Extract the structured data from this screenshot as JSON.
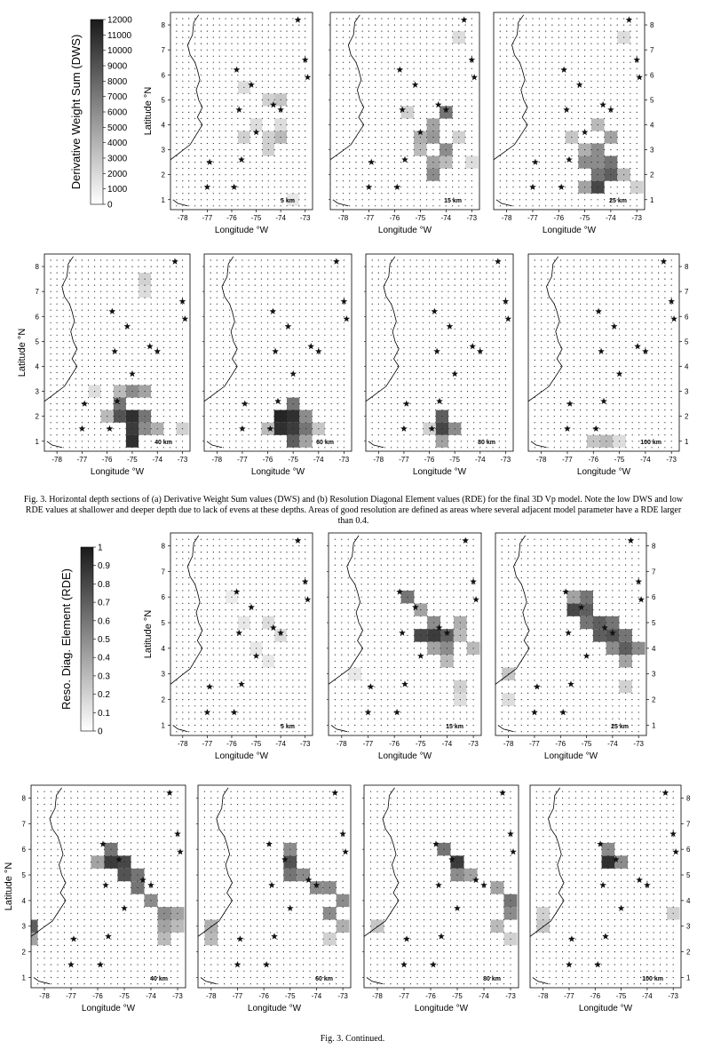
{
  "figure": {
    "caption_main": "Fig. 3. Horizontal depth sections of (a) Derivative Weight Sum values (DWS) and (b) Resolution Diagonal Element values (RDE) for the final 3D Vp model. Note the low DWS and low RDE values at shallower and deeper depth due to lack of evens at these depths. Areas of good resolution are defined as areas where several adjacent model parameter have a RDE larger than 0.4.",
    "caption_continued": "Fig. 3. Continued."
  },
  "axes": {
    "xlabel": "Longitude °W",
    "ylabel": "Latitude °N",
    "x_ticks": [
      "-78",
      "-77",
      "-76",
      "-75",
      "-74",
      "-73"
    ],
    "y_ticks": [
      "1",
      "2",
      "3",
      "4",
      "5",
      "6",
      "7",
      "8"
    ]
  },
  "dws_colorbar": {
    "label": "Derivative Weight Sum (DWS)",
    "ticks": [
      "0",
      "1000",
      "2000",
      "3000",
      "4000",
      "5000",
      "6000",
      "7000",
      "8000",
      "9000",
      "10000",
      "11000",
      "12000"
    ]
  },
  "rde_colorbar": {
    "label": "Reso. Diag. Element (RDE)",
    "ticks": [
      "0",
      "0.1",
      "0.2",
      "0.3",
      "0.4",
      "0.5",
      "0.6",
      "0.7",
      "0.8",
      "0.9",
      "1"
    ]
  },
  "chart_data": {
    "type": "heatmap",
    "title": "Horizontal depth sections of DWS and RDE for the final 3D Vp model",
    "xlabel": "Longitude °W",
    "ylabel": "Latitude °N",
    "xlim": [
      -78.5,
      -72.7
    ],
    "ylim": [
      0.6,
      8.5
    ],
    "stations": [
      [
        -73.3,
        8.2
      ],
      [
        -73.0,
        6.6
      ],
      [
        -72.9,
        5.9
      ],
      [
        -75.8,
        6.2
      ],
      [
        -75.2,
        5.6
      ],
      [
        -74.3,
        4.8
      ],
      [
        -75.7,
        4.6
      ],
      [
        -74.0,
        4.6
      ],
      [
        -75.0,
        3.7
      ],
      [
        -75.6,
        2.6
      ],
      [
        -76.9,
        2.5
      ],
      [
        -77.0,
        1.5
      ],
      [
        -75.9,
        1.5
      ]
    ],
    "dws_sections": [
      {
        "depth_label": "5 km",
        "cells": [
          [
            -75.5,
            5.5,
            0.15
          ],
          [
            -74.5,
            5.0,
            0.2
          ],
          [
            -74.0,
            5.0,
            0.25
          ],
          [
            -75.0,
            4.0,
            0.15
          ],
          [
            -74.5,
            3.5,
            0.2
          ],
          [
            -74.0,
            3.5,
            0.3
          ],
          [
            -75.5,
            3.5,
            0.2
          ],
          [
            -74.5,
            3.0,
            0.2
          ],
          [
            -74.0,
            4.0,
            0.15
          ],
          [
            -73.5,
            1.0,
            0.1
          ]
        ]
      },
      {
        "depth_label": "15 km",
        "cells": [
          [
            -73.5,
            7.5,
            0.15
          ],
          [
            -74.0,
            4.5,
            0.6
          ],
          [
            -74.5,
            4.0,
            0.4
          ],
          [
            -75.0,
            3.5,
            0.35
          ],
          [
            -74.5,
            3.5,
            0.45
          ],
          [
            -74.0,
            3.0,
            0.5
          ],
          [
            -75.0,
            3.0,
            0.3
          ],
          [
            -74.5,
            2.5,
            0.4
          ],
          [
            -74.5,
            2.0,
            0.5
          ],
          [
            -74.0,
            2.5,
            0.3
          ],
          [
            -75.5,
            4.5,
            0.2
          ],
          [
            -73.5,
            3.5,
            0.2
          ],
          [
            -73.0,
            2.5,
            0.15
          ]
        ]
      },
      {
        "depth_label": "25 km",
        "cells": [
          [
            -73.5,
            7.5,
            0.15
          ],
          [
            -74.5,
            4.0,
            0.3
          ],
          [
            -74.0,
            3.5,
            0.4
          ],
          [
            -75.0,
            3.0,
            0.35
          ],
          [
            -74.5,
            3.0,
            0.5
          ],
          [
            -74.0,
            2.5,
            0.6
          ],
          [
            -74.5,
            2.5,
            0.5
          ],
          [
            -75.0,
            2.5,
            0.5
          ],
          [
            -74.5,
            2.0,
            0.6
          ],
          [
            -74.0,
            2.0,
            0.7
          ],
          [
            -74.5,
            1.5,
            0.8
          ],
          [
            -75.0,
            1.5,
            0.4
          ],
          [
            -73.5,
            2.0,
            0.3
          ],
          [
            -73.0,
            1.5,
            0.2
          ],
          [
            -75.5,
            3.5,
            0.25
          ]
        ]
      },
      {
        "depth_label": "40 km",
        "cells": [
          [
            -74.5,
            7.5,
            0.2
          ],
          [
            -74.5,
            7.0,
            0.15
          ],
          [
            -75.5,
            3.0,
            0.3
          ],
          [
            -75.0,
            3.0,
            0.5
          ],
          [
            -74.5,
            3.0,
            0.4
          ],
          [
            -75.5,
            2.5,
            0.6
          ],
          [
            -75.0,
            2.0,
            0.9
          ],
          [
            -75.5,
            2.0,
            0.75
          ],
          [
            -74.5,
            2.0,
            0.6
          ],
          [
            -75.0,
            1.5,
            0.85
          ],
          [
            -74.5,
            1.5,
            0.5
          ],
          [
            -75.0,
            1.0,
            0.9
          ],
          [
            -74.0,
            1.5,
            0.35
          ],
          [
            -76.0,
            2.0,
            0.3
          ],
          [
            -73.0,
            1.5,
            0.2
          ],
          [
            -76.5,
            3.0,
            0.15
          ]
        ]
      },
      {
        "depth_label": "60 km",
        "cells": [
          [
            -75.0,
            2.5,
            0.6
          ],
          [
            -75.5,
            2.0,
            0.95
          ],
          [
            -75.0,
            2.0,
            0.9
          ],
          [
            -75.5,
            1.5,
            0.9
          ],
          [
            -75.0,
            1.5,
            0.85
          ],
          [
            -74.5,
            1.5,
            0.6
          ],
          [
            -74.5,
            2.0,
            0.5
          ],
          [
            -75.0,
            1.0,
            0.7
          ],
          [
            -74.5,
            1.0,
            0.4
          ],
          [
            -76.0,
            1.5,
            0.3
          ],
          [
            -74.0,
            1.5,
            0.25
          ]
        ]
      },
      {
        "depth_label": "80 km",
        "cells": [
          [
            -75.5,
            2.0,
            0.7
          ],
          [
            -75.5,
            1.5,
            0.8
          ],
          [
            -75.0,
            1.5,
            0.5
          ],
          [
            -75.5,
            1.0,
            0.4
          ],
          [
            -76.0,
            1.5,
            0.2
          ]
        ]
      },
      {
        "depth_label": "100 km",
        "cells": [
          [
            -76.0,
            1.0,
            0.25
          ],
          [
            -75.5,
            1.0,
            0.3
          ],
          [
            -75.0,
            1.0,
            0.15
          ]
        ]
      }
    ],
    "rde_sections": [
      {
        "depth_label": "5 km",
        "cells": [
          [
            -75.5,
            5.0,
            0.1
          ],
          [
            -74.5,
            5.0,
            0.15
          ],
          [
            -74.0,
            4.5,
            0.15
          ],
          [
            -75.0,
            4.0,
            0.1
          ],
          [
            -74.5,
            3.5,
            0.1
          ],
          [
            -76.0,
            6.0,
            0.08
          ]
        ]
      },
      {
        "depth_label": "15 km",
        "cells": [
          [
            -75.5,
            6.0,
            0.6
          ],
          [
            -75.0,
            5.5,
            0.4
          ],
          [
            -74.5,
            5.0,
            0.5
          ],
          [
            -75.0,
            4.5,
            0.8
          ],
          [
            -74.5,
            4.5,
            0.85
          ],
          [
            -74.0,
            4.5,
            0.7
          ],
          [
            -74.0,
            4.0,
            0.5
          ],
          [
            -74.5,
            4.0,
            0.4
          ],
          [
            -73.5,
            5.0,
            0.35
          ],
          [
            -73.5,
            4.5,
            0.3
          ],
          [
            -73.0,
            4.0,
            0.3
          ],
          [
            -74.0,
            3.5,
            0.3
          ],
          [
            -73.5,
            2.5,
            0.2
          ],
          [
            -73.5,
            2.0,
            0.15
          ],
          [
            -77.5,
            3.0,
            0.1
          ]
        ]
      },
      {
        "depth_label": "25 km",
        "cells": [
          [
            -75.0,
            6.0,
            0.6
          ],
          [
            -75.5,
            5.5,
            0.8
          ],
          [
            -75.0,
            5.5,
            0.7
          ],
          [
            -74.5,
            5.0,
            0.7
          ],
          [
            -75.0,
            5.0,
            0.6
          ],
          [
            -74.0,
            5.0,
            0.6
          ],
          [
            -74.5,
            4.5,
            0.7
          ],
          [
            -74.0,
            4.5,
            0.75
          ],
          [
            -73.5,
            4.5,
            0.6
          ],
          [
            -74.0,
            4.0,
            0.5
          ],
          [
            -73.5,
            4.0,
            0.7
          ],
          [
            -73.0,
            4.0,
            0.5
          ],
          [
            -73.5,
            3.5,
            0.4
          ],
          [
            -73.5,
            2.5,
            0.2
          ],
          [
            -78.0,
            3.0,
            0.25
          ],
          [
            -78.0,
            2.0,
            0.15
          ],
          [
            -75.5,
            6.0,
            0.4
          ]
        ]
      },
      {
        "depth_label": "40 km",
        "cells": [
          [
            -75.5,
            6.0,
            0.6
          ],
          [
            -75.5,
            5.5,
            0.85
          ],
          [
            -75.0,
            5.5,
            0.8
          ],
          [
            -75.0,
            5.0,
            0.75
          ],
          [
            -74.5,
            5.0,
            0.6
          ],
          [
            -74.5,
            4.5,
            0.6
          ],
          [
            -74.0,
            4.0,
            0.5
          ],
          [
            -73.5,
            3.5,
            0.5
          ],
          [
            -73.0,
            3.5,
            0.4
          ],
          [
            -73.5,
            3.0,
            0.4
          ],
          [
            -73.0,
            3.0,
            0.3
          ],
          [
            -78.5,
            3.0,
            0.7
          ],
          [
            -78.5,
            2.5,
            0.4
          ],
          [
            -76.0,
            5.5,
            0.4
          ],
          [
            -73.5,
            2.5,
            0.3
          ]
        ]
      },
      {
        "depth_label": "60 km",
        "cells": [
          [
            -75.0,
            6.0,
            0.5
          ],
          [
            -75.0,
            5.5,
            0.75
          ],
          [
            -75.0,
            5.0,
            0.6
          ],
          [
            -74.5,
            5.0,
            0.5
          ],
          [
            -74.0,
            4.5,
            0.5
          ],
          [
            -73.5,
            4.5,
            0.5
          ],
          [
            -73.0,
            4.0,
            0.5
          ],
          [
            -73.5,
            3.5,
            0.5
          ],
          [
            -73.0,
            3.0,
            0.35
          ],
          [
            -78.0,
            3.0,
            0.35
          ],
          [
            -78.0,
            2.5,
            0.3
          ],
          [
            -73.5,
            2.5,
            0.2
          ]
        ]
      },
      {
        "depth_label": "80 km",
        "cells": [
          [
            -75.5,
            6.0,
            0.6
          ],
          [
            -75.0,
            5.5,
            0.85
          ],
          [
            -75.0,
            5.0,
            0.5
          ],
          [
            -74.5,
            5.0,
            0.4
          ],
          [
            -73.5,
            4.5,
            0.4
          ],
          [
            -73.0,
            4.0,
            0.6
          ],
          [
            -73.0,
            3.5,
            0.5
          ],
          [
            -73.5,
            3.0,
            0.3
          ],
          [
            -78.0,
            3.0,
            0.25
          ],
          [
            -73.0,
            2.5,
            0.2
          ]
        ]
      },
      {
        "depth_label": "100 km",
        "cells": [
          [
            -75.5,
            5.5,
            0.9
          ],
          [
            -75.5,
            6.0,
            0.5
          ],
          [
            -75.0,
            5.5,
            0.5
          ],
          [
            -73.0,
            3.5,
            0.2
          ],
          [
            -78.0,
            3.0,
            0.25
          ],
          [
            -78.0,
            3.5,
            0.2
          ]
        ]
      }
    ]
  }
}
